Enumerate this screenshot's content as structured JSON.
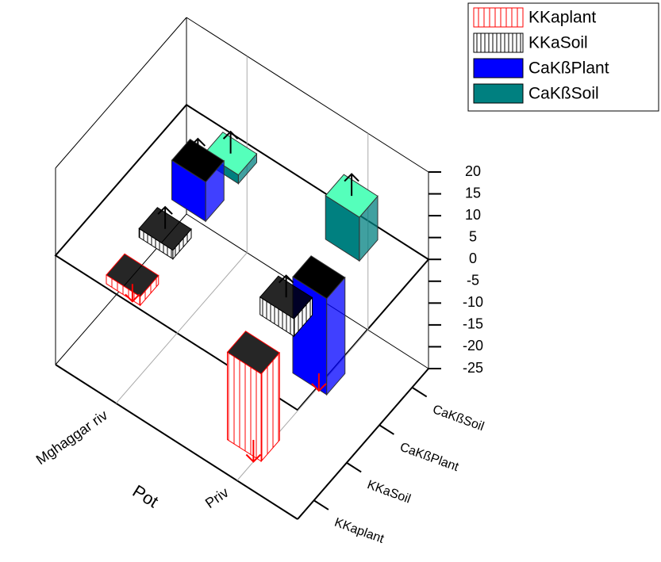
{
  "chart_data": {
    "type": "bar3d",
    "x_title": "Pot",
    "categories": [
      "Mghaggar riv",
      "Priv"
    ],
    "series": [
      {
        "name": "KKaplant",
        "color": "#ff0000",
        "fill": "hatch",
        "values": [
          -2,
          -20
        ],
        "errors": [
          4,
          5
        ]
      },
      {
        "name": "KKaSoil",
        "color": "#000000",
        "fill": "hatch",
        "values": [
          2,
          4
        ],
        "errors": [
          5,
          5
        ]
      },
      {
        "name": "CaKßPlant",
        "color": "#0000ff",
        "fill": "solid",
        "values": [
          9,
          -22
        ],
        "errors": [
          5,
          4
        ]
      },
      {
        "name": "CaKßSoil",
        "color": "#008080",
        "fill": "solid",
        "values": [
          2,
          10
        ],
        "errors": [
          5,
          5
        ]
      }
    ],
    "ylim": [
      -25,
      20
    ],
    "yticks": [
      -25,
      -20,
      -15,
      -10,
      -5,
      0,
      5,
      10,
      15,
      20
    ],
    "legend": "top-right"
  }
}
